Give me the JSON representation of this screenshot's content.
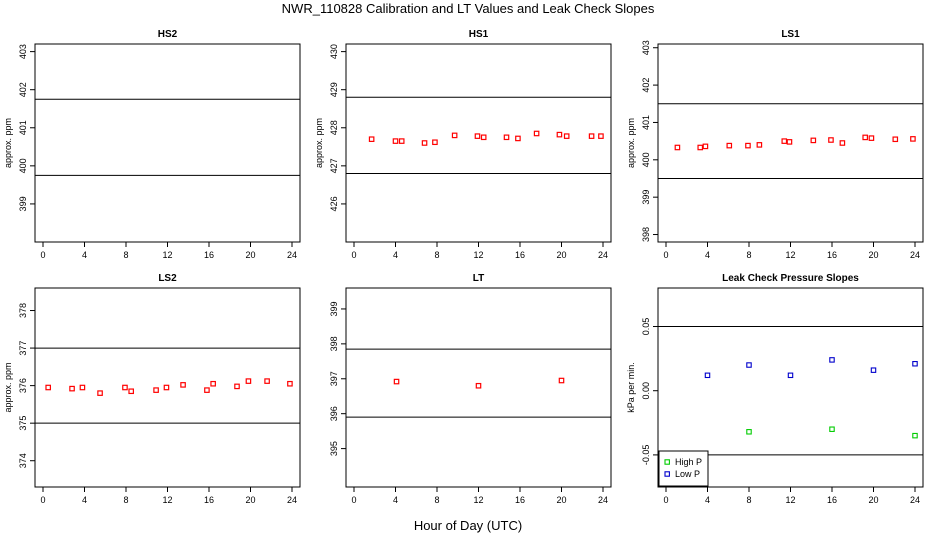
{
  "title": "NWR_110828  Calibration and LT Values and Leak Check Slopes",
  "xlabel": "Hour of Day (UTC)",
  "colors": {
    "cal": "#ff0000",
    "high": "#00cc00",
    "low": "#0000cc",
    "frame": "#000000"
  },
  "chart_data": [
    {
      "type": "scatter",
      "title": "HS2",
      "ylabel": "approx. ppm",
      "xlim": [
        0,
        24
      ],
      "xticks": [
        0,
        4,
        8,
        12,
        16,
        20,
        24
      ],
      "ylim": [
        398.0,
        403.2
      ],
      "yticks": [
        399,
        400,
        401,
        402,
        403
      ],
      "hlines": [
        399.75,
        401.75
      ],
      "x": [],
      "y": []
    },
    {
      "type": "scatter",
      "title": "HS1",
      "ylabel": "approx. ppm",
      "xlim": [
        0,
        24
      ],
      "xticks": [
        0,
        4,
        8,
        12,
        16,
        20,
        24
      ],
      "ylim": [
        425.0,
        430.2
      ],
      "yticks": [
        426,
        427,
        428,
        429,
        430
      ],
      "hlines": [
        426.8,
        428.8
      ],
      "x": [
        1.7,
        4.0,
        4.6,
        6.8,
        7.8,
        9.7,
        11.9,
        12.5,
        14.7,
        15.8,
        17.6,
        19.8,
        20.5,
        22.9,
        23.8
      ],
      "y": [
        427.7,
        427.65,
        427.65,
        427.6,
        427.62,
        427.8,
        427.78,
        427.75,
        427.75,
        427.72,
        427.85,
        427.82,
        427.78,
        427.78,
        427.78
      ]
    },
    {
      "type": "scatter",
      "title": "LS1",
      "ylabel": "approx. ppm",
      "xlim": [
        0,
        24
      ],
      "xticks": [
        0,
        4,
        8,
        12,
        16,
        20,
        24
      ],
      "ylim": [
        397.8,
        403.1
      ],
      "yticks": [
        398,
        399,
        400,
        401,
        402,
        403
      ],
      "hlines": [
        399.5,
        401.5
      ],
      "x": [
        1.1,
        3.3,
        3.8,
        6.1,
        7.9,
        9.0,
        11.4,
        11.9,
        14.2,
        15.9,
        17.0,
        19.2,
        19.8,
        22.1,
        23.8
      ],
      "y": [
        400.33,
        400.33,
        400.36,
        400.38,
        400.38,
        400.4,
        400.5,
        400.48,
        400.52,
        400.53,
        400.45,
        400.6,
        400.58,
        400.55,
        400.56
      ]
    },
    {
      "type": "scatter",
      "title": "LS2",
      "ylabel": "approx. ppm",
      "xlim": [
        0,
        24
      ],
      "xticks": [
        0,
        4,
        8,
        12,
        16,
        20,
        24
      ],
      "ylim": [
        373.3,
        378.6
      ],
      "yticks": [
        374,
        375,
        376,
        377,
        378
      ],
      "hlines": [
        375.0,
        377.0
      ],
      "x": [
        0.5,
        2.8,
        3.8,
        5.5,
        7.9,
        8.5,
        10.9,
        11.9,
        13.5,
        15.8,
        16.4,
        18.7,
        19.8,
        21.6,
        23.8
      ],
      "y": [
        375.95,
        375.92,
        375.95,
        375.8,
        375.95,
        375.85,
        375.88,
        375.95,
        376.02,
        375.88,
        376.05,
        375.98,
        376.12,
        376.12,
        376.05
      ]
    },
    {
      "type": "scatter",
      "title": "LT",
      "ylabel": "",
      "xlim": [
        0,
        24
      ],
      "xticks": [
        0,
        4,
        8,
        12,
        16,
        20,
        24
      ],
      "ylim": [
        393.9,
        399.6
      ],
      "yticks": [
        395,
        396,
        397,
        398,
        399
      ],
      "hlines": [
        395.9,
        397.85
      ],
      "x": [
        4.1,
        12.0,
        20.0
      ],
      "y": [
        396.92,
        396.8,
        396.95
      ]
    },
    {
      "type": "scatter",
      "title": "Leak Check Pressure Slopes",
      "ylabel": "kPa per min.",
      "xlim": [
        0,
        24
      ],
      "xticks": [
        0,
        4,
        8,
        12,
        16,
        20,
        24
      ],
      "ylim": [
        -0.075,
        0.08
      ],
      "yticks": [
        -0.05,
        0.0,
        0.05
      ],
      "ytick_labels": [
        "-0.05",
        "0.00",
        "0.05"
      ],
      "hlines": [
        0.05,
        -0.05
      ],
      "legend": {
        "position": "bottom-left",
        "entries": [
          "High P",
          "Low P"
        ]
      },
      "series": [
        {
          "name": "High P",
          "x": [
            8.0,
            16.0,
            24.0
          ],
          "y": [
            -0.032,
            -0.03,
            -0.035
          ]
        },
        {
          "name": "Low P",
          "x": [
            4.0,
            8.0,
            12.0,
            16.0,
            20.0,
            24.0
          ],
          "y": [
            0.012,
            0.02,
            0.012,
            0.024,
            0.016,
            0.021
          ]
        }
      ]
    }
  ]
}
